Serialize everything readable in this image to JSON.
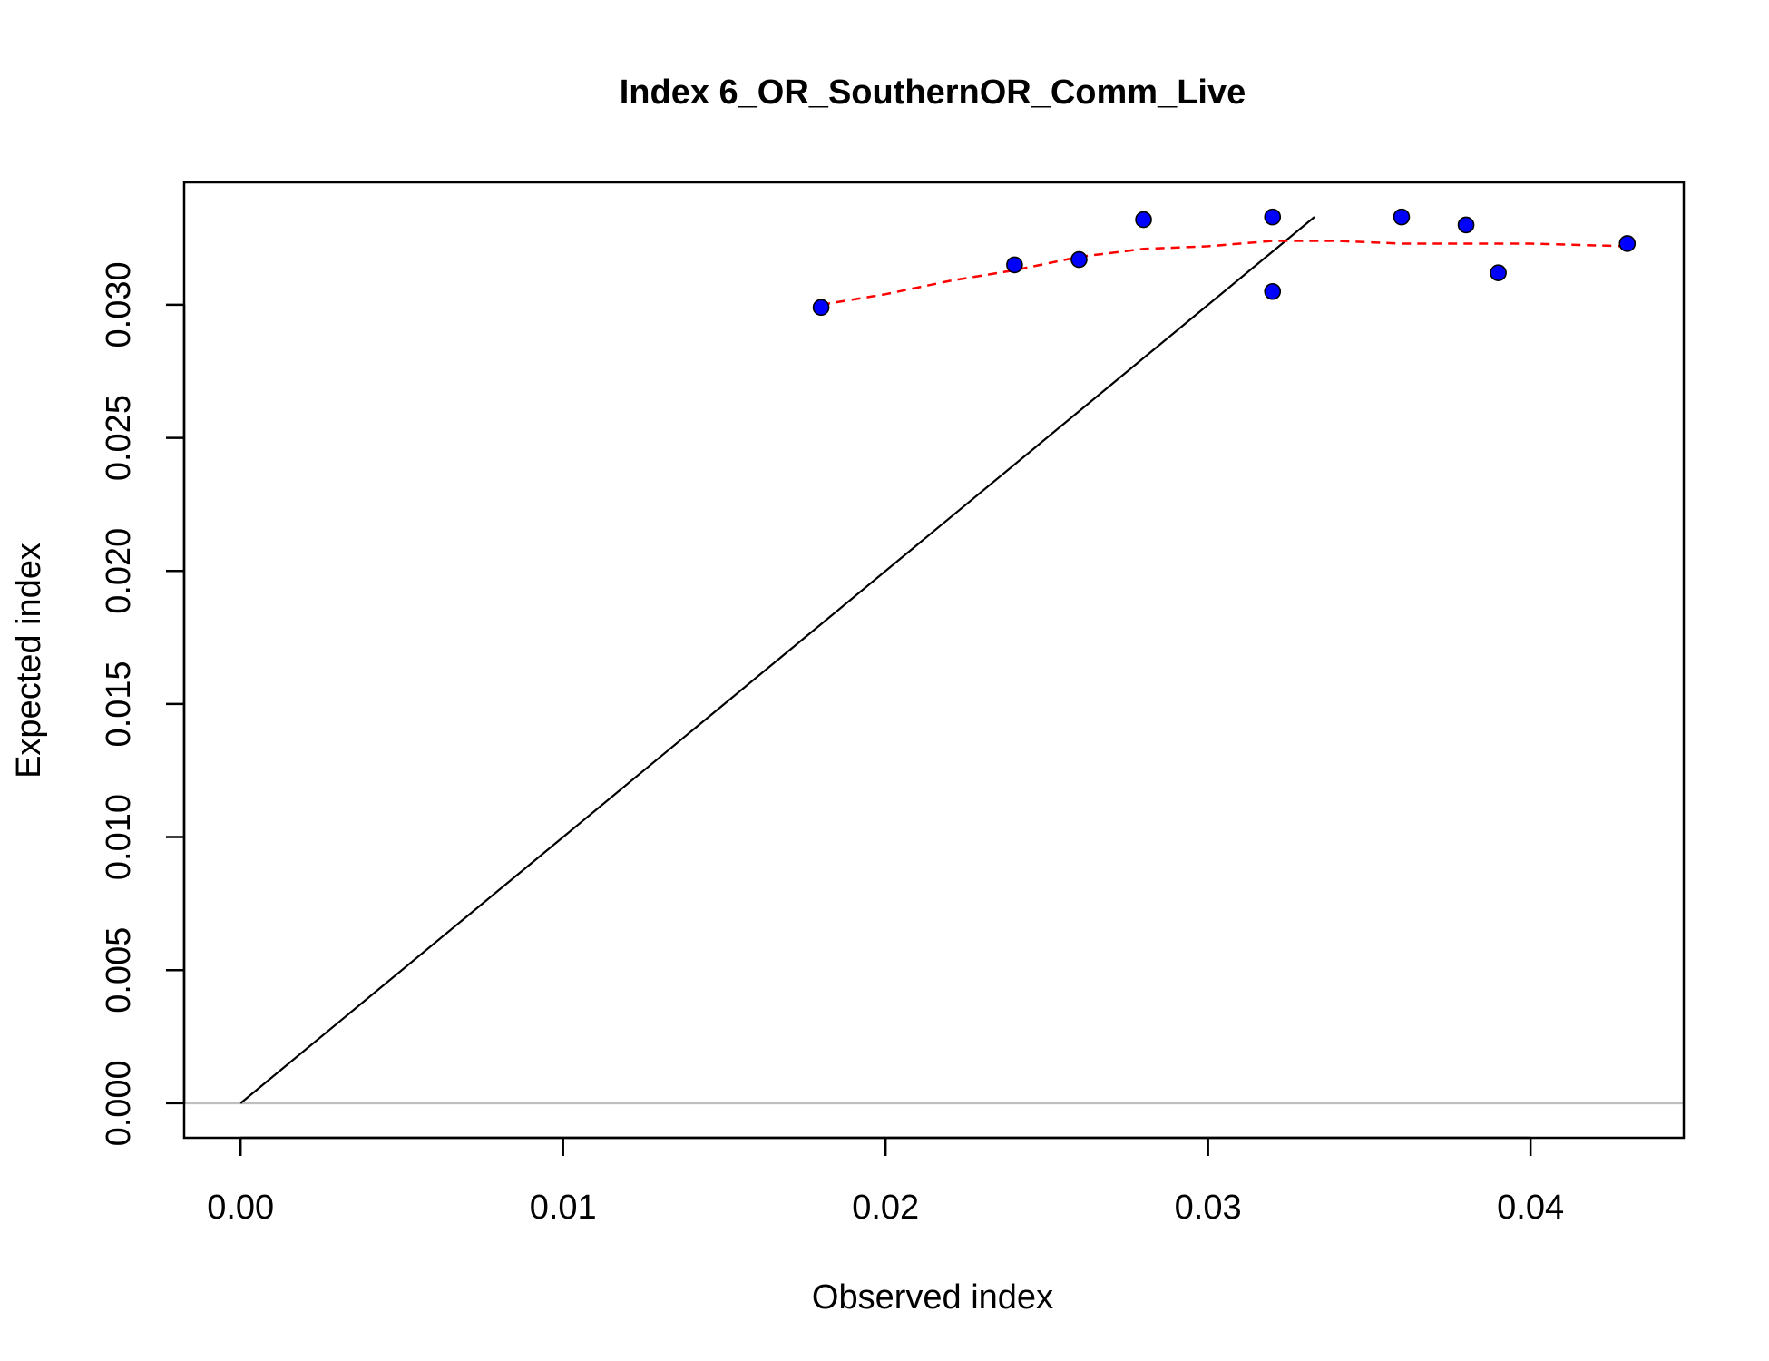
{
  "chart_data": {
    "type": "scatter",
    "title": "Index 6_OR_SouthernOR_Comm_Live",
    "xlabel": "Observed index",
    "ylabel": "Expected index",
    "xlim": [
      -0.00175,
      0.04475
    ],
    "ylim": [
      -0.0013,
      0.0346
    ],
    "x_ticks": [
      0.0,
      0.01,
      0.02,
      0.03,
      0.04
    ],
    "x_tick_labels": [
      "0.00",
      "0.01",
      "0.02",
      "0.03",
      "0.04"
    ],
    "y_ticks": [
      0.0,
      0.005,
      0.01,
      0.015,
      0.02,
      0.025,
      0.03
    ],
    "y_tick_labels": [
      "0.000",
      "0.005",
      "0.010",
      "0.015",
      "0.020",
      "0.025",
      "0.030"
    ],
    "grid": false,
    "points": {
      "x": [
        0.018,
        0.024,
        0.026,
        0.028,
        0.032,
        0.032,
        0.036,
        0.038,
        0.039,
        0.043
      ],
      "y": [
        0.0299,
        0.0315,
        0.0317,
        0.0332,
        0.0333,
        0.0305,
        0.0333,
        0.033,
        0.0312,
        0.0323
      ],
      "color": "#0000ff"
    },
    "identity_line": {
      "from": [
        0.0,
        0.0
      ],
      "to": [
        0.0333,
        0.0333
      ],
      "color": "#000000"
    },
    "zero_line": {
      "y": 0.0,
      "color": "#bebebe"
    },
    "smoother": {
      "x": [
        0.018,
        0.02,
        0.022,
        0.024,
        0.026,
        0.028,
        0.03,
        0.032,
        0.034,
        0.036,
        0.038,
        0.04,
        0.043
      ],
      "y": [
        0.03,
        0.0304,
        0.0309,
        0.0313,
        0.0318,
        0.0321,
        0.0322,
        0.0324,
        0.0324,
        0.0323,
        0.0323,
        0.0323,
        0.0322
      ],
      "color": "#ff0000",
      "style": "dashed"
    }
  }
}
